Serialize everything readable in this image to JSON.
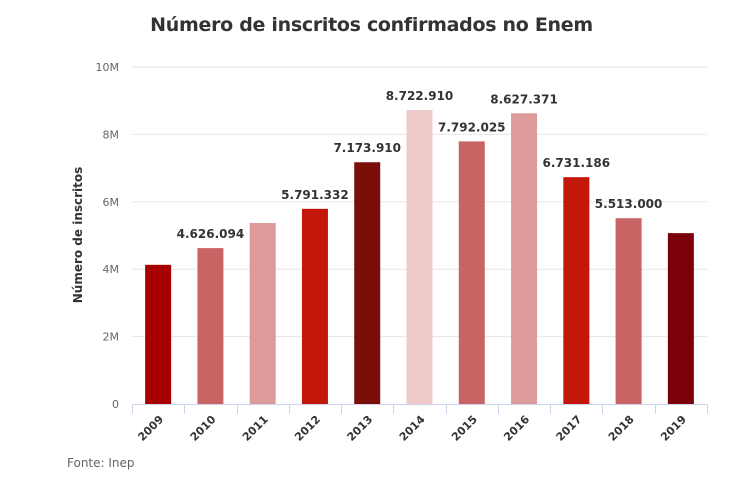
{
  "chart_data": {
    "type": "bar",
    "title": "Número de inscritos confirmados no Enem",
    "xlabel": "",
    "ylabel": "Número de inscritos",
    "ylim": [
      0,
      10000000
    ],
    "yticks": [
      0,
      2000000,
      4000000,
      6000000,
      8000000,
      10000000
    ],
    "ytick_labels": [
      "0",
      "2M",
      "4M",
      "6M",
      "8M",
      "10M"
    ],
    "grid": true,
    "categories": [
      "2009",
      "2010",
      "2011",
      "2012",
      "2013",
      "2014",
      "2015",
      "2016",
      "2017",
      "2018",
      "2019"
    ],
    "values": [
      4130000,
      4626094,
      5370000,
      5791332,
      7173910,
      8722910,
      7792025,
      8627371,
      6731186,
      5513000,
      5070000
    ],
    "data_labels": [
      "",
      "4.626.094",
      "",
      "5.791.332",
      "7.173.910",
      "8.722.910",
      "7.792.025",
      "8.627.371",
      "6.731.186",
      "5.513.000",
      ""
    ],
    "colors": [
      "#a80000",
      "#c96464",
      "#dc9a9a",
      "#c4170c",
      "#7a0f0a",
      "#efcaca",
      "#c96464",
      "#dc9a9a",
      "#c4170c",
      "#c96464",
      "#7a000c"
    ]
  },
  "footer": {
    "source": "Fonte: Inep"
  }
}
